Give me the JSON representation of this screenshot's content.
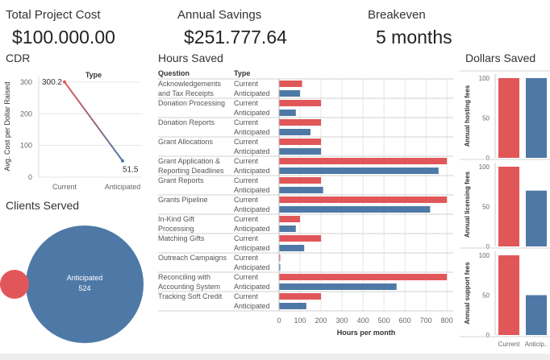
{
  "kpis": {
    "total_cost_label": "Total Project Cost",
    "total_cost_value": "$100.000.00",
    "savings_label": "Annual Savings",
    "savings_value": "$251.777.64",
    "breakeven_label": "Breakeven",
    "breakeven_value": "5 months"
  },
  "colors": {
    "current": "#e15759",
    "anticipated": "#4e79a7",
    "grid": "#e6e6e6",
    "axis": "#666666"
  },
  "chart_data": [
    {
      "id": "cdr",
      "type": "line",
      "title": "CDR",
      "legend_title": "Type",
      "xlabel": "",
      "ylabel": "Avg. Cost per Dollar Raised",
      "categories": [
        "Current",
        "Anticipated"
      ],
      "values": [
        300.2,
        51.5
      ],
      "value_labels": [
        "300.2",
        "51.5"
      ],
      "ylim": [
        0,
        320
      ],
      "yticks": [
        "0",
        "100",
        "200",
        "300"
      ]
    },
    {
      "id": "hours",
      "type": "bar",
      "title": "Hours Saved",
      "header_question": "Question",
      "header_type": "Type",
      "xlabel": "Hours per month",
      "xlim": [
        0,
        830
      ],
      "xticks": [
        "0",
        "100",
        "200",
        "300",
        "400",
        "500",
        "600",
        "700",
        "800"
      ],
      "series_names": [
        "Current",
        "Anticipated"
      ],
      "questions": [
        {
          "label": [
            "Acknowledgements",
            "and Tax Receipts"
          ],
          "current": 110,
          "anticipated": 100
        },
        {
          "label": [
            "Donation Processing"
          ],
          "current": 200,
          "anticipated": 80
        },
        {
          "label": [
            "Donation Reports"
          ],
          "current": 200,
          "anticipated": 150
        },
        {
          "label": [
            "Grant Allocations"
          ],
          "current": 200,
          "anticipated": 200
        },
        {
          "label": [
            "Grant Application &",
            "Reporting Deadlines"
          ],
          "current": 800,
          "anticipated": 760
        },
        {
          "label": [
            "Grant Reports"
          ],
          "current": 200,
          "anticipated": 210
        },
        {
          "label": [
            "Grants Pipeline"
          ],
          "current": 800,
          "anticipated": 720
        },
        {
          "label": [
            "In-Kind Gift",
            "Processing"
          ],
          "current": 100,
          "anticipated": 80
        },
        {
          "label": [
            "Matching Gifts"
          ],
          "current": 200,
          "anticipated": 120
        },
        {
          "label": [
            "Outreach Campaigns"
          ],
          "current": 5,
          "anticipated": 5
        },
        {
          "label": [
            "Reconciling with",
            "Accounting System"
          ],
          "current": 800,
          "anticipated": 560
        },
        {
          "label": [
            "Tracking Soft Credit"
          ],
          "current": 200,
          "anticipated": 130
        }
      ]
    },
    {
      "id": "dollars",
      "type": "bar",
      "title": "Dollars Saved",
      "categories": [
        "Current",
        "Anticip.."
      ],
      "ylim": [
        0,
        105
      ],
      "yticks": [
        "0",
        "50",
        "100"
      ],
      "panels": [
        {
          "ylabel": "Annual hosting fees",
          "values": [
            100,
            100
          ]
        },
        {
          "ylabel": "Annual licensing fees",
          "values": [
            100,
            70
          ]
        },
        {
          "ylabel": "Annual support fees",
          "values": [
            100,
            50
          ]
        }
      ]
    },
    {
      "id": "clients",
      "type": "scatter",
      "title": "Clients Served",
      "points": [
        {
          "name": "Current",
          "value": 32
        },
        {
          "name": "Anticipated",
          "value": 524,
          "label": "Anticipated",
          "value_label": "524"
        }
      ]
    }
  ]
}
